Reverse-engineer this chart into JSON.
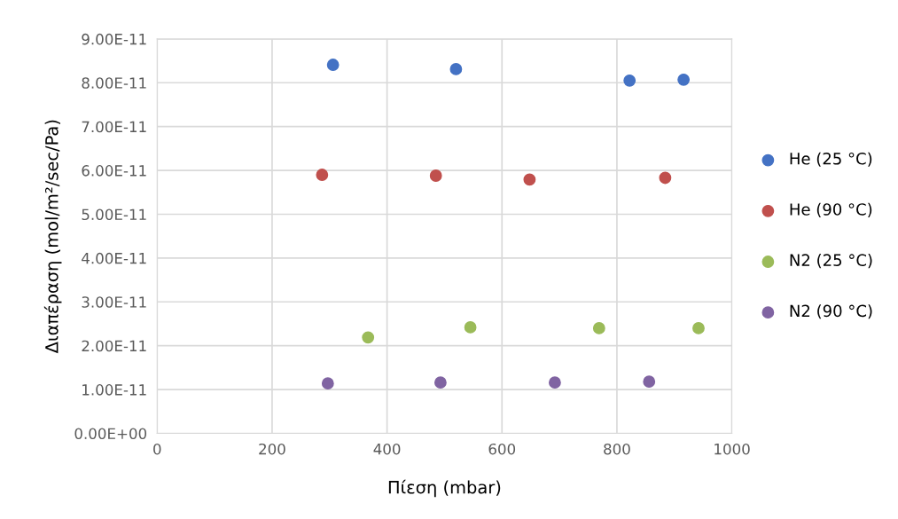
{
  "chart_data": {
    "type": "scatter",
    "xlabel": "Πίεση (mbar)",
    "ylabel": "Διαπέραση (mol/m²/sec/Pa)",
    "xlim": [
      0,
      1000
    ],
    "xticks": [
      0,
      200,
      400,
      600,
      800,
      1000
    ],
    "ylim": [
      0,
      9e-11
    ],
    "yticks": [
      {
        "value": 0,
        "label": "0.00E+00"
      },
      {
        "value": 1e-11,
        "label": "1.00E-11"
      },
      {
        "value": 2e-11,
        "label": "2.00E-11"
      },
      {
        "value": 3e-11,
        "label": "3.00E-11"
      },
      {
        "value": 4e-11,
        "label": "4.00E-11"
      },
      {
        "value": 5e-11,
        "label": "5.00E-11"
      },
      {
        "value": 6e-11,
        "label": "6.00E-11"
      },
      {
        "value": 7e-11,
        "label": "7.00E-11"
      },
      {
        "value": 8e-11,
        "label": "8.00E-11"
      },
      {
        "value": 9e-11,
        "label": "9.00E-11"
      }
    ],
    "grid": true,
    "legend": "right",
    "marker": "circle",
    "series": [
      {
        "name": "He (25 °C)",
        "color": "#4472c4",
        "x": [
          306,
          520,
          822,
          916
        ],
        "values": [
          8.41e-11,
          8.31e-11,
          8.05e-11,
          8.07e-11
        ]
      },
      {
        "name": "He (90 °C)",
        "color": "#c0504d",
        "x": [
          287,
          485,
          648,
          884
        ],
        "values": [
          5.9e-11,
          5.88e-11,
          5.79e-11,
          5.83e-11
        ]
      },
      {
        "name": "N2 (25 °C)",
        "color": "#9bbb59",
        "x": [
          367,
          545,
          769,
          942
        ],
        "values": [
          2.19e-11,
          2.42e-11,
          2.4e-11,
          2.4e-11
        ]
      },
      {
        "name": "N2 (90 °C)",
        "color": "#8064a2",
        "x": [
          297,
          493,
          692,
          856
        ],
        "values": [
          1.14e-11,
          1.16e-11,
          1.16e-11,
          1.18e-11
        ]
      }
    ]
  }
}
